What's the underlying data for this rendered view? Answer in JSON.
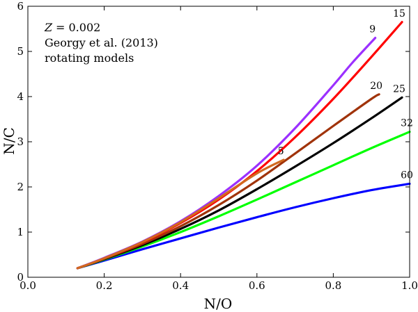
{
  "chart_data": {
    "type": "line",
    "title": "",
    "xlabel": "N/O",
    "ylabel": "N/C",
    "xlim": [
      0.0,
      1.0
    ],
    "ylim": [
      0,
      6
    ],
    "xticks": [
      "0.0",
      "0.2",
      "0.4",
      "0.6",
      "0.8",
      "1.0"
    ],
    "yticks": [
      "0",
      "1",
      "2",
      "3",
      "4",
      "5",
      "6"
    ],
    "annotations": {
      "metallicity_var": "Z",
      "metallicity_value": "= 0.002",
      "reference": "Georgy et al. (2013)",
      "description": "rotating models"
    },
    "series": [
      {
        "name": "60",
        "color": "#0000ff",
        "x": [
          0.13,
          0.2,
          0.3,
          0.4,
          0.5,
          0.6,
          0.7,
          0.8,
          0.9,
          1.0
        ],
        "y": [
          0.2,
          0.37,
          0.62,
          0.86,
          1.1,
          1.33,
          1.55,
          1.75,
          1.93,
          2.07
        ]
      },
      {
        "name": "32",
        "color": "#00ff00",
        "x": [
          0.13,
          0.2,
          0.3,
          0.4,
          0.5,
          0.6,
          0.7,
          0.8,
          0.9,
          1.0
        ],
        "y": [
          0.2,
          0.39,
          0.68,
          1.0,
          1.35,
          1.72,
          2.1,
          2.48,
          2.86,
          3.22
        ]
      },
      {
        "name": "25",
        "color": "#000000",
        "x": [
          0.13,
          0.2,
          0.3,
          0.4,
          0.5,
          0.6,
          0.7,
          0.8,
          0.9,
          0.98
        ],
        "y": [
          0.2,
          0.4,
          0.71,
          1.07,
          1.48,
          1.95,
          2.45,
          2.97,
          3.52,
          3.98
        ]
      },
      {
        "name": "20",
        "color": "#a0330a",
        "x": [
          0.13,
          0.2,
          0.3,
          0.4,
          0.5,
          0.6,
          0.7,
          0.8,
          0.9,
          0.92
        ],
        "y": [
          0.2,
          0.41,
          0.74,
          1.13,
          1.6,
          2.14,
          2.74,
          3.35,
          3.95,
          4.05
        ]
      },
      {
        "name": "15",
        "color": "#ff0000",
        "x": [
          0.13,
          0.2,
          0.3,
          0.4,
          0.5,
          0.6,
          0.7,
          0.8,
          0.9,
          0.98
        ],
        "y": [
          0.2,
          0.42,
          0.77,
          1.2,
          1.72,
          2.35,
          3.1,
          3.95,
          4.88,
          5.65
        ]
      },
      {
        "name": "9",
        "color": "#9b30ff",
        "x": [
          0.13,
          0.2,
          0.3,
          0.4,
          0.5,
          0.6,
          0.7,
          0.8,
          0.85,
          0.91
        ],
        "y": [
          0.2,
          0.43,
          0.79,
          1.24,
          1.8,
          2.47,
          3.3,
          4.25,
          4.75,
          5.3
        ]
      },
      {
        "name": "5",
        "color": "#d2691e",
        "x": [
          0.13,
          0.2,
          0.3,
          0.4,
          0.5,
          0.6,
          0.67
        ],
        "y": [
          0.2,
          0.42,
          0.78,
          1.22,
          1.75,
          2.3,
          2.6
        ]
      }
    ]
  }
}
